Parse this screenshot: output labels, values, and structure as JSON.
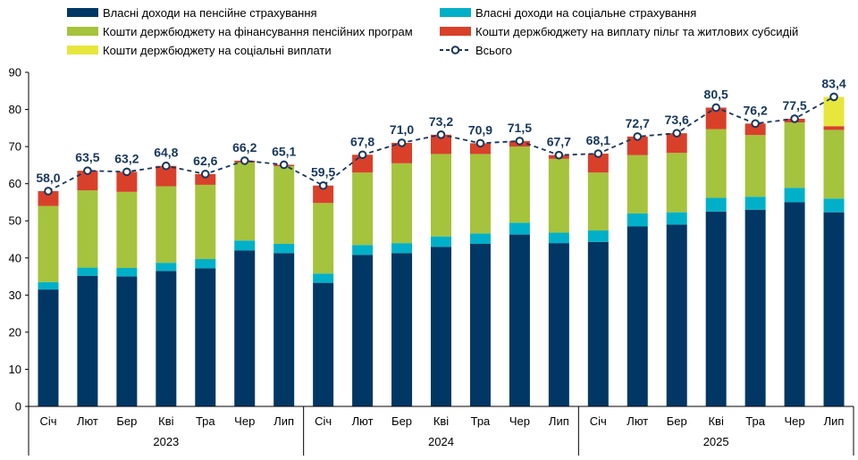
{
  "chart_data": {
    "type": "bar",
    "stacked": true,
    "legend_position": "top",
    "grid": false,
    "ylim": [
      0,
      90
    ],
    "yticks": [
      0,
      10,
      20,
      30,
      40,
      50,
      60,
      70,
      80,
      90
    ],
    "categories": [
      "Січ",
      "Лют",
      "Бер",
      "Кві",
      "Тра",
      "Чер",
      "Лип",
      "Січ",
      "Лют",
      "Бер",
      "Кві",
      "Тра",
      "Чер",
      "Лип",
      "Січ",
      "Лют",
      "Бер",
      "Кві",
      "Тра",
      "Чер",
      "Лип"
    ],
    "groups": [
      {
        "label": "2023",
        "start": 0,
        "end": 6
      },
      {
        "label": "2024",
        "start": 7,
        "end": 13
      },
      {
        "label": "2025",
        "start": 14,
        "end": 20
      }
    ],
    "series": [
      {
        "name": "Власні доходи на пенсійне страхування",
        "color": "#003764",
        "values": [
          31.5,
          35.2,
          35.0,
          36.5,
          37.2,
          42.0,
          41.3,
          33.3,
          40.8,
          41.3,
          43.0,
          43.8,
          46.3,
          44.0,
          44.3,
          48.5,
          49.0,
          52.5,
          53.0,
          55.0,
          52.3
        ]
      },
      {
        "name": "Власні доходи на соціальне страхування",
        "color": "#00b0c8",
        "values": [
          2.0,
          2.2,
          2.3,
          2.2,
          2.5,
          2.7,
          2.5,
          2.5,
          2.7,
          2.7,
          2.8,
          2.8,
          3.2,
          2.8,
          3.1,
          3.5,
          3.3,
          3.7,
          3.5,
          3.9,
          3.7
        ]
      },
      {
        "name": "Кошти держбюджету на фінансування пенсійних програм",
        "color": "#a5c33c",
        "values": [
          20.5,
          20.8,
          20.5,
          20.6,
          20.0,
          21.0,
          20.9,
          19.0,
          19.5,
          21.5,
          22.2,
          21.4,
          20.5,
          19.9,
          15.6,
          15.7,
          16.0,
          18.5,
          16.6,
          17.6,
          18.5
        ]
      },
      {
        "name": "Кошти держбюджету на виплату пільг та житлових субсидій",
        "color": "#d9402a",
        "values": [
          4.0,
          5.3,
          5.4,
          5.5,
          2.9,
          0.5,
          0.4,
          4.7,
          4.8,
          5.5,
          5.2,
          2.9,
          1.5,
          1.0,
          5.1,
          5.0,
          5.3,
          5.8,
          3.1,
          1.0,
          1.0
        ]
      },
      {
        "name": "Кошти держбюджету на соціальні виплати",
        "color": "#e6e63c",
        "values": [
          0,
          0,
          0,
          0,
          0,
          0,
          0,
          0,
          0,
          0,
          0,
          0,
          0,
          0,
          0,
          0,
          0,
          0,
          0,
          0,
          7.9
        ]
      }
    ],
    "total": {
      "name": "Всього",
      "color": "#17375e",
      "values": [
        58.0,
        63.5,
        63.2,
        64.8,
        62.6,
        66.2,
        65.1,
        59.5,
        67.8,
        71.0,
        73.2,
        70.9,
        71.5,
        67.7,
        68.1,
        72.7,
        73.6,
        80.5,
        76.2,
        77.5,
        83.4
      ],
      "labels": [
        "58,0",
        "63,5",
        "63,2",
        "64,8",
        "62,6",
        "66,2",
        "65,1",
        "59,5",
        "67,8",
        "71,0",
        "73,2",
        "70,9",
        "71,5",
        "67,7",
        "68,1",
        "72,7",
        "73,6",
        "80,5",
        "76,2",
        "77,5",
        "83,4"
      ]
    }
  }
}
